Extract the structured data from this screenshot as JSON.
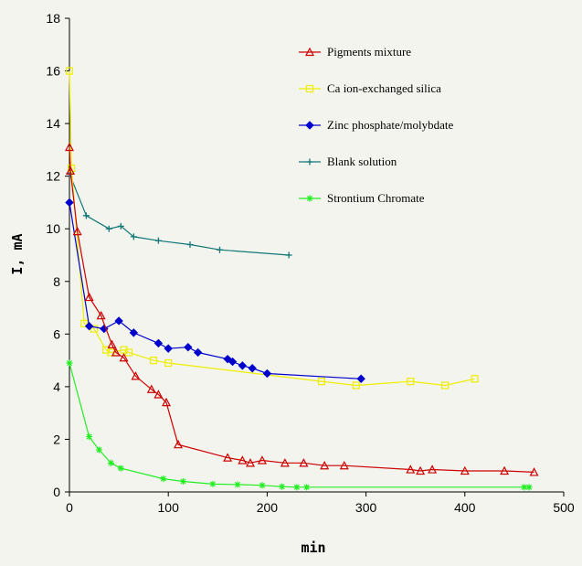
{
  "chart_data": {
    "type": "line",
    "title": "",
    "xlabel": "min",
    "ylabel": "I, mA",
    "xlim": [
      0,
      500
    ],
    "ylim": [
      0,
      18
    ],
    "xticks": [
      0,
      100,
      200,
      300,
      400,
      500
    ],
    "yticks": [
      0,
      2,
      4,
      6,
      8,
      10,
      12,
      14,
      16,
      18
    ],
    "grid": false,
    "legend": "top-right",
    "series": [
      {
        "name": "Pigments mixture",
        "color": "#cc0000",
        "marker": "triangle",
        "x": [
          0,
          1,
          8,
          20,
          32,
          43,
          47,
          55,
          67,
          83,
          90,
          98,
          110,
          160,
          175,
          183,
          195,
          218,
          237,
          258,
          278,
          345,
          355,
          367,
          400,
          440,
          470
        ],
        "y": [
          13.1,
          12.2,
          9.9,
          7.4,
          6.7,
          5.6,
          5.3,
          5.1,
          4.4,
          3.9,
          3.7,
          3.4,
          1.8,
          1.3,
          1.2,
          1.1,
          1.2,
          1.1,
          1.1,
          1.0,
          1.0,
          0.85,
          0.8,
          0.85,
          0.8,
          0.8,
          0.75
        ]
      },
      {
        "name": "Ca ion-exchanged silica",
        "color": "#eeee00",
        "marker": "square",
        "x": [
          0,
          2,
          15,
          25,
          37,
          42,
          55,
          60,
          85,
          100,
          255,
          290,
          345,
          380,
          410
        ],
        "y": [
          16.0,
          12.3,
          6.4,
          6.2,
          5.4,
          5.3,
          5.4,
          5.3,
          5.0,
          4.9,
          4.2,
          4.05,
          4.2,
          4.05,
          4.3
        ]
      },
      {
        "name": "Zinc phosphate/molybdate",
        "color": "#0000cc",
        "marker": "diamond",
        "x": [
          0,
          20,
          35,
          50,
          65,
          90,
          100,
          120,
          130,
          160,
          165,
          175,
          185,
          200,
          295
        ],
        "y": [
          11.0,
          6.3,
          6.2,
          6.5,
          6.05,
          5.65,
          5.45,
          5.5,
          5.3,
          5.05,
          4.95,
          4.8,
          4.7,
          4.5,
          4.3
        ]
      },
      {
        "name": "Blank solution",
        "color": "#117777",
        "marker": "plus",
        "x": [
          0,
          17,
          40,
          52,
          65,
          90,
          122,
          152,
          222
        ],
        "y": [
          12.1,
          10.5,
          10.0,
          10.1,
          9.7,
          9.55,
          9.4,
          9.2,
          9.0
        ]
      },
      {
        "name": "Strontium Chromate",
        "color": "#22ee22",
        "marker": "star",
        "x": [
          0,
          20,
          30,
          42,
          52,
          95,
          115,
          145,
          170,
          195,
          215,
          230,
          240,
          460,
          465
        ],
        "y": [
          4.9,
          2.1,
          1.6,
          1.1,
          0.9,
          0.5,
          0.4,
          0.3,
          0.28,
          0.25,
          0.2,
          0.18,
          0.18,
          0.18,
          0.18
        ]
      }
    ]
  }
}
